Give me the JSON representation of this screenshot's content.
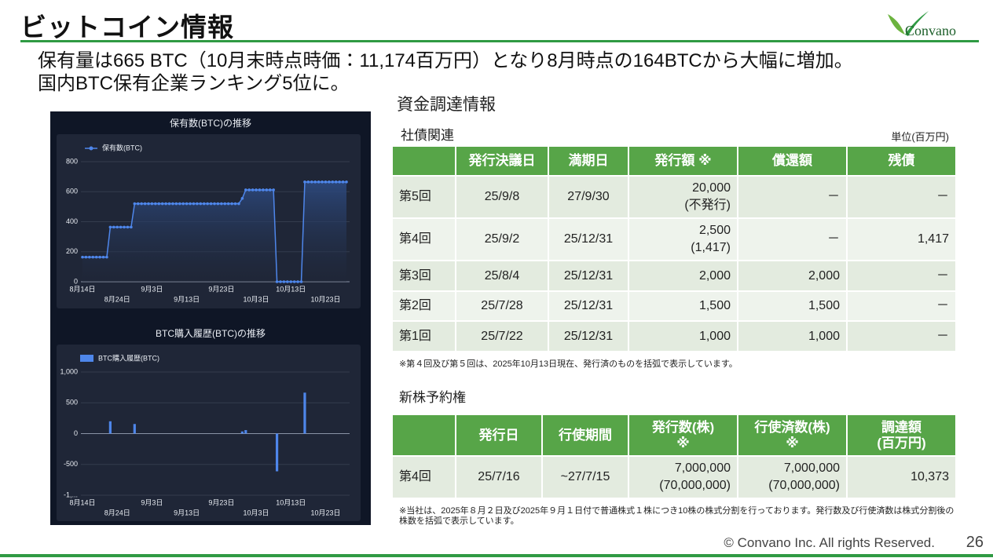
{
  "header": {
    "title": "ビットコイン情報",
    "logo": "Convano"
  },
  "summary": [
    "保有量は665 BTC（10月末時点時価：11,174百万円）となり8月時点の164BTCから大幅に増加。",
    "国内BTC保有企業ランキング5位に。"
  ],
  "chart_data": [
    {
      "type": "line",
      "title": "保有数(BTC)の推移",
      "categories": [
        "8月14日",
        null,
        null,
        null,
        null,
        null,
        null,
        null,
        null,
        null,
        "8月24日",
        null,
        null,
        null,
        null,
        null,
        null,
        null,
        null,
        null,
        "9月3日",
        null,
        null,
        null,
        null,
        null,
        null,
        null,
        null,
        null,
        "9月13日",
        null,
        null,
        null,
        null,
        null,
        null,
        null,
        null,
        null,
        "9月23日",
        null,
        null,
        null,
        null,
        null,
        null,
        null,
        null,
        null,
        "10月3日",
        null,
        null,
        null,
        null,
        null,
        null,
        null,
        null,
        null,
        "10月13日",
        null,
        null,
        null,
        null,
        null,
        null,
        null,
        null,
        null,
        "10月23日",
        null,
        null,
        null,
        null,
        null,
        null
      ],
      "series": [
        {
          "name": "保有数(BTC)",
          "color": "#4e86ea",
          "values": [
            164,
            164,
            164,
            164,
            164,
            164,
            164,
            164,
            364,
            364,
            364,
            364,
            364,
            364,
            364,
            520,
            520,
            520,
            520,
            520,
            520,
            520,
            520,
            520,
            520,
            520,
            520,
            520,
            520,
            520,
            520,
            520,
            520,
            520,
            520,
            520,
            520,
            520,
            520,
            520,
            520,
            520,
            520,
            520,
            520,
            520,
            555,
            612,
            612,
            612,
            612,
            612,
            612,
            612,
            612,
            612,
            0,
            0,
            0,
            0,
            0,
            0,
            0,
            0,
            665,
            665,
            665,
            665,
            665,
            665,
            665,
            665,
            665,
            665,
            665,
            665,
            665
          ]
        }
      ],
      "ylim": [
        0,
        800
      ],
      "yticks": [
        0,
        200,
        400,
        600,
        800
      ],
      "grid": true
    },
    {
      "type": "bar",
      "title": "BTC購入履歴(BTC)の推移",
      "categories": [
        "8月14日",
        null,
        null,
        null,
        null,
        null,
        null,
        null,
        null,
        null,
        "8月24日",
        null,
        null,
        null,
        null,
        null,
        null,
        null,
        null,
        null,
        "9月3日",
        null,
        null,
        null,
        null,
        null,
        null,
        null,
        null,
        null,
        "9月13日",
        null,
        null,
        null,
        null,
        null,
        null,
        null,
        null,
        null,
        "9月23日",
        null,
        null,
        null,
        null,
        null,
        null,
        null,
        null,
        null,
        "10月3日",
        null,
        null,
        null,
        null,
        null,
        null,
        null,
        null,
        null,
        "10月13日",
        null,
        null,
        null,
        null,
        null,
        null,
        null,
        null,
        null,
        "10月23日",
        null,
        null,
        null,
        null,
        null,
        null
      ],
      "series": [
        {
          "name": "BTC購入履歴(BTC)",
          "color": "#4e86ea",
          "values": [
            0,
            0,
            0,
            0,
            0,
            0,
            0,
            0,
            200,
            0,
            0,
            0,
            0,
            0,
            0,
            156,
            0,
            0,
            0,
            0,
            0,
            0,
            0,
            0,
            0,
            0,
            0,
            0,
            0,
            0,
            0,
            0,
            0,
            0,
            0,
            0,
            0,
            0,
            0,
            0,
            0,
            0,
            0,
            0,
            0,
            0,
            35,
            57,
            0,
            0,
            0,
            0,
            0,
            0,
            0,
            0,
            -612,
            0,
            0,
            0,
            0,
            0,
            0,
            0,
            665,
            0,
            0,
            0,
            0,
            0,
            0,
            0,
            0,
            0,
            0,
            0,
            0
          ]
        }
      ],
      "ylim": [
        -1000,
        1000
      ],
      "yticks": [
        {
          "value": -1000,
          "label": "-1,..."
        },
        -500,
        0,
        500,
        {
          "value": 1000,
          "label": "1,000"
        }
      ],
      "grid": true
    }
  ],
  "funding": {
    "title": "資金調達情報",
    "bonds": {
      "title": "社債関連",
      "unit": "単位(百万円)",
      "headers": [
        "発行決議日",
        "満期日",
        "発行額 ※",
        "償還額",
        "残債"
      ],
      "rows": [
        {
          "label": "第5回",
          "cells": [
            "25/9/8",
            "27/9/30",
            "20,000\n(不発行)",
            "－",
            "－"
          ]
        },
        {
          "label": "第4回",
          "cells": [
            "25/9/2",
            "25/12/31",
            "2,500\n(1,417)",
            "－",
            "1,417"
          ]
        },
        {
          "label": "第3回",
          "cells": [
            "25/8/4",
            "25/12/31",
            "2,000",
            "2,000",
            "－"
          ]
        },
        {
          "label": "第2回",
          "cells": [
            "25/7/28",
            "25/12/31",
            "1,500",
            "1,500",
            "－"
          ]
        },
        {
          "label": "第1回",
          "cells": [
            "25/7/22",
            "25/12/31",
            "1,000",
            "1,000",
            "－"
          ]
        }
      ],
      "note": "※第４回及び第５回は、2025年10月13日現在、発行済のものを括弧で表示しています。"
    },
    "warrants": {
      "title": "新株予約権",
      "headers": [
        "発行日",
        "行使期間",
        "発行数(株)\n※",
        "行使済数(株)\n※",
        "調達額\n(百万円)"
      ],
      "rows": [
        {
          "label": "第4回",
          "cells": [
            "25/7/16",
            "~27/7/15",
            "7,000,000\n(70,000,000)",
            "7,000,000\n(70,000,000)",
            "10,373"
          ]
        }
      ],
      "note": "※当社は、2025年８月２日及び2025年９月１日付で普通株式１株につき10株の株式分割を行っております。発行数及び行使済数は株式分割後の株数を括弧で表示しています。"
    }
  },
  "footer": {
    "copyright": "© Convano Inc. All rights Reserved.",
    "page": "26"
  }
}
